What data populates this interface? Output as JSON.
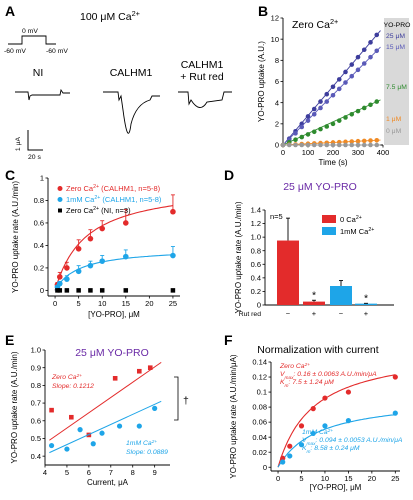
{
  "panel_a": {
    "label": "A",
    "title": "100 μM Ca",
    "title_sup": "2+",
    "protocol": {
      "v_top": "0 mV",
      "v_left": "-60 mV",
      "v_right": "-60 mV"
    },
    "conditions": [
      "NI",
      "CALHM1",
      "CALHM1",
      "+ Rut red"
    ],
    "scale_y": "1 μA",
    "scale_x": "20 s"
  },
  "chart_data": [
    {
      "panel": "B",
      "type": "scatter",
      "title": "Zero Ca",
      "title_sup": "2+",
      "xlabel": "Time (s)",
      "ylabel": "YO-PRO uptake (A.U.)",
      "xlim": [
        0,
        400
      ],
      "ylim": [
        0,
        12
      ],
      "xticks": [
        "0",
        "100",
        "200",
        "300",
        "400"
      ],
      "yticks": [
        "0",
        "2",
        "4",
        "6",
        "8",
        "10",
        "12"
      ],
      "shaded_label": "YO-PRO",
      "series": [
        {
          "name": "25 μM",
          "color": "#3d3d9c",
          "x": [
            0,
            25,
            50,
            75,
            100,
            125,
            150,
            175,
            200,
            225,
            250,
            275,
            300,
            325,
            350,
            375
          ],
          "y": [
            0,
            0.6,
            1.3,
            2.0,
            2.7,
            3.4,
            4.1,
            4.8,
            5.5,
            6.2,
            6.9,
            7.6,
            8.3,
            9.0,
            9.7,
            10.4
          ]
        },
        {
          "name": "15 μM",
          "color": "#5a5ab8",
          "x": [
            0,
            25,
            50,
            75,
            100,
            125,
            150,
            175,
            200,
            225,
            250,
            275,
            300,
            325,
            350,
            375
          ],
          "y": [
            0,
            0.5,
            1.1,
            1.7,
            2.3,
            2.9,
            3.5,
            4.1,
            4.7,
            5.3,
            5.9,
            6.5,
            7.1,
            7.7,
            8.3,
            8.9
          ]
        },
        {
          "name": "7.5 μM",
          "color": "#2e8b2e",
          "x": [
            0,
            25,
            50,
            75,
            100,
            125,
            150,
            175,
            200,
            225,
            250,
            275,
            300,
            325,
            350,
            375
          ],
          "y": [
            0,
            0.25,
            0.5,
            0.75,
            1.0,
            1.25,
            1.5,
            1.75,
            2.0,
            2.3,
            2.6,
            2.9,
            3.2,
            3.5,
            3.8,
            4.1
          ]
        },
        {
          "name": "1 μM",
          "color": "#f08a24",
          "x": [
            0,
            25,
            50,
            75,
            100,
            125,
            150,
            175,
            200,
            225,
            250,
            275,
            300,
            325,
            350,
            375
          ],
          "y": [
            0,
            0.03,
            0.06,
            0.09,
            0.12,
            0.15,
            0.18,
            0.21,
            0.24,
            0.27,
            0.3,
            0.33,
            0.36,
            0.39,
            0.42,
            0.45
          ]
        },
        {
          "name": "0 μM",
          "color": "#999999",
          "x": [
            0,
            25,
            50,
            75,
            100,
            125,
            150,
            175,
            200,
            225,
            250,
            275,
            300,
            325,
            350,
            375
          ],
          "y": [
            0,
            0,
            0,
            0,
            0,
            0,
            0,
            0,
            0,
            0,
            0,
            0,
            0,
            0,
            0,
            0
          ]
        }
      ]
    },
    {
      "panel": "C",
      "type": "scatter",
      "xlabel": "[YO-PRO], μM",
      "ylabel": "YO-PRO uptake rate (A.U./min)",
      "xlim": [
        0,
        25
      ],
      "ylim": [
        0,
        1
      ],
      "xticks": [
        "0",
        "5",
        "10",
        "15",
        "20",
        "25"
      ],
      "yticks": [
        "0",
        "0.2",
        "0.4",
        "0.6",
        "0.8",
        "1"
      ],
      "series": [
        {
          "name": "Zero Ca",
          "name_sup": "2+",
          "name_rest": " (CALHM1, n=5-8)",
          "color": "#e32b2b",
          "x": [
            0.5,
            1,
            2.5,
            5,
            7.5,
            10,
            15,
            25
          ],
          "y": [
            0.05,
            0.12,
            0.2,
            0.37,
            0.46,
            0.55,
            0.6,
            0.7
          ],
          "err": [
            0.02,
            0.04,
            0.05,
            0.08,
            0.08,
            0.07,
            0.12,
            0.15
          ]
        },
        {
          "name": "1mM Ca",
          "name_sup": "2+",
          "name_rest": " (CALHM1, n=5-8)",
          "color": "#1ea5e8",
          "x": [
            0.5,
            1,
            2.5,
            5,
            7.5,
            10,
            15,
            25
          ],
          "y": [
            0.03,
            0.06,
            0.1,
            0.17,
            0.22,
            0.26,
            0.3,
            0.31
          ],
          "err": [
            0.01,
            0.02,
            0.03,
            0.05,
            0.04,
            0.05,
            0.06,
            0.08
          ]
        },
        {
          "name": "Zero Ca",
          "name_sup": "2+",
          "name_rest": " (NI, n=3)",
          "color": "#000000",
          "x": [
            0.5,
            1,
            2.5,
            5,
            7.5,
            10,
            15,
            25
          ],
          "y": [
            0,
            0,
            0,
            0,
            0,
            0,
            0,
            0
          ],
          "err": []
        }
      ]
    },
    {
      "panel": "D",
      "type": "bar",
      "title": "25 μM YO-PRO",
      "annotation": "n=5",
      "ylabel": "YO-PRO uptake rate (A.U./min)",
      "ylim": [
        0,
        1.4
      ],
      "yticks": [
        "0",
        "0.2",
        "0.4",
        "0.6",
        "0.8",
        "1.0",
        "1.2",
        "1.4"
      ],
      "row_label": "Rut red",
      "categories": [
        "−",
        "+",
        "−",
        "+"
      ],
      "values": [
        0.95,
        0.05,
        0.28,
        0.02
      ],
      "errors": [
        0.33,
        0.02,
        0.08,
        0.005
      ],
      "colors": [
        "#e32b2b",
        "#e32b2b",
        "#1ea5e8",
        "#1ea5e8"
      ],
      "stars": [
        "",
        "*",
        "",
        "*"
      ],
      "legend": [
        {
          "name": "0 Ca",
          "sup": "2+",
          "color": "#e32b2b"
        },
        {
          "name": "1mM Ca",
          "sup": "2+",
          "color": "#1ea5e8"
        }
      ]
    },
    {
      "panel": "E",
      "type": "scatter",
      "title": "25 μM YO-PRO",
      "xlabel": "Current, μA",
      "ylabel": "YO-PRO uptake rate (A.U./min)",
      "xlim": [
        4,
        9.7
      ],
      "ylim": [
        0.35,
        1.0
      ],
      "xticks": [
        "4",
        "5",
        "6",
        "7",
        "8",
        "9"
      ],
      "yticks": [
        "0.4",
        "0.5",
        "0.6",
        "0.7",
        "0.8",
        "0.9",
        "1.0"
      ],
      "sig": "†",
      "series": [
        {
          "name": "Zero Ca",
          "sup": "2+",
          "annotation": "Slope: 0.1212",
          "color": "#e32b2b",
          "x": [
            4.3,
            5.2,
            6.0,
            7.2,
            8.3,
            8.8
          ],
          "y": [
            0.66,
            0.62,
            0.52,
            0.84,
            0.88,
            0.9
          ]
        },
        {
          "name": "1mM Ca",
          "sup": "2+",
          "annotation": "Slope: 0.0889",
          "color": "#1ea5e8",
          "x": [
            4.3,
            5.0,
            5.6,
            6.2,
            6.6,
            7.4,
            8.3,
            9.0
          ],
          "y": [
            0.46,
            0.44,
            0.55,
            0.47,
            0.53,
            0.57,
            0.57,
            0.67
          ]
        }
      ]
    },
    {
      "panel": "F",
      "type": "scatter",
      "title": "Normalization with current",
      "xlabel": "[YO-PRO], μM",
      "ylabel": "YO-PRO uptake rate (A.U./min/μA)",
      "xlim": [
        0,
        25
      ],
      "ylim": [
        0,
        0.14
      ],
      "xticks": [
        "0",
        "5",
        "10",
        "15",
        "20",
        "25"
      ],
      "yticks": [
        "0",
        "0.02",
        "0.04",
        "0.06",
        "0.08",
        "0.1",
        "0.12",
        "0.14"
      ],
      "series": [
        {
          "name": "Zero Ca",
          "sup": "2+",
          "vmax": "V",
          "vmax_sub": "max",
          "vmax_val": ": 0.16 ± 0.0063 A.U./min/μA",
          "km": "K",
          "km_sub": "m",
          "km_val": ": 7.5 ± 1.24 μM",
          "color": "#e32b2b",
          "x": [
            1,
            2.5,
            5,
            7.5,
            10,
            15,
            25
          ],
          "y": [
            0.012,
            0.028,
            0.055,
            0.078,
            0.092,
            0.1,
            0.12
          ]
        },
        {
          "name": "1mM Ca",
          "sup": "2+",
          "vmax": "V",
          "vmax_sub": "max",
          "vmax_val": ": 0.094 ± 0.0053 A.U./min/μA",
          "km": "K",
          "km_sub": "m",
          "km_val": ": 8.58 ± 0.24 μM",
          "color": "#1ea5e8",
          "x": [
            1,
            2.5,
            5,
            7.5,
            10,
            15,
            25
          ],
          "y": [
            0.007,
            0.015,
            0.03,
            0.045,
            0.055,
            0.062,
            0.072
          ]
        }
      ]
    }
  ]
}
